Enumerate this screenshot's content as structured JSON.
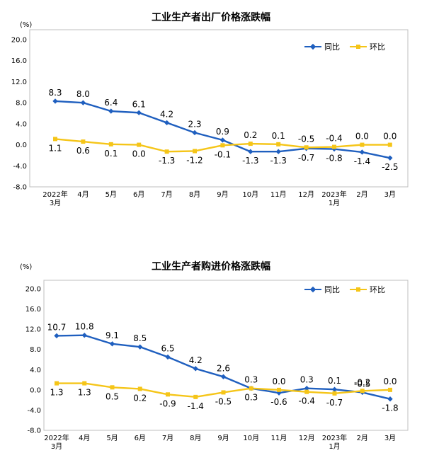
{
  "colors": {
    "series1": "#1f5fbf",
    "series2": "#f5c518",
    "frame": "#bfbfbf"
  },
  "chart_data": [
    {
      "type": "line",
      "title": "工业生产者出厂价格涨跌幅",
      "unit": "(%)",
      "ylim": [
        -8.0,
        20.0
      ],
      "yticks": [
        "20.0",
        "16.0",
        "12.0",
        "8.0",
        "4.0",
        "0.0",
        "-4.0",
        "-8.0"
      ],
      "categories": [
        [
          "2022年",
          "3月"
        ],
        [
          "4月"
        ],
        [
          "5月"
        ],
        [
          "6月"
        ],
        [
          "7月"
        ],
        [
          "8月"
        ],
        [
          "9月"
        ],
        [
          "10月"
        ],
        [
          "11月"
        ],
        [
          "12月"
        ],
        [
          "2023年",
          "1月"
        ],
        [
          "2月"
        ],
        [
          "3月"
        ]
      ],
      "legend_position": "top-right",
      "series": [
        {
          "name": "同比",
          "values": [
            8.3,
            8.0,
            6.4,
            6.1,
            4.2,
            2.3,
            0.9,
            -1.3,
            -1.3,
            -0.7,
            -0.8,
            -1.4,
            -2.5
          ],
          "labels": [
            "8.3",
            "8.0",
            "6.4",
            "6.1",
            "4.2",
            "2.3",
            "0.9",
            "-1.3",
            "-1.3",
            "-0.7",
            "-0.8",
            "-1.4",
            "-2.5"
          ]
        },
        {
          "name": "环比",
          "values": [
            1.1,
            0.6,
            0.1,
            0.0,
            -1.3,
            -1.2,
            -0.1,
            0.2,
            0.1,
            -0.5,
            -0.4,
            0.0,
            0.0
          ],
          "labels": [
            "1.1",
            "0.6",
            "0.1",
            "0.0",
            "-1.3",
            "-1.2",
            "-0.1",
            "0.2",
            "0.1",
            "-0.5",
            "-0.4",
            "0.0",
            "0.0"
          ]
        }
      ]
    },
    {
      "type": "line",
      "title": "工业生产者购进价格涨跌幅",
      "unit": "(%)",
      "ylim": [
        -8.0,
        20.0
      ],
      "yticks": [
        "20.0",
        "16.0",
        "12.0",
        "8.0",
        "4.0",
        "0.0",
        "-4.0",
        "-8.0"
      ],
      "categories": [
        [
          "2022年",
          "3月"
        ],
        [
          "4月"
        ],
        [
          "5月"
        ],
        [
          "6月"
        ],
        [
          "7月"
        ],
        [
          "8月"
        ],
        [
          "9月"
        ],
        [
          "10月"
        ],
        [
          "11月"
        ],
        [
          "12月"
        ],
        [
          "2023年",
          "1月"
        ],
        [
          "2月"
        ],
        [
          "3月"
        ]
      ],
      "legend_position": "top-right",
      "series": [
        {
          "name": "同比",
          "values": [
            10.7,
            10.8,
            9.1,
            8.5,
            6.5,
            4.2,
            2.6,
            0.3,
            -0.6,
            0.3,
            0.1,
            -0.5,
            -1.8
          ],
          "labels": [
            "10.7",
            "10.8",
            "9.1",
            "8.5",
            "6.5",
            "4.2",
            "2.6",
            "0.3",
            "-0.6",
            "0.3",
            "0.1",
            "-0.5",
            "-1.8"
          ]
        },
        {
          "name": "环比",
          "values": [
            1.3,
            1.3,
            0.5,
            0.2,
            -0.9,
            -1.4,
            -0.5,
            0.3,
            0.0,
            -0.4,
            -0.7,
            -0.2,
            0.0
          ],
          "labels": [
            "1.3",
            "1.3",
            "0.5",
            "0.2",
            "-0.9",
            "-1.4",
            "-0.5",
            "0.3",
            "0.0",
            "-0.4",
            "-0.7",
            "-0.2",
            "0.0"
          ]
        }
      ]
    }
  ]
}
